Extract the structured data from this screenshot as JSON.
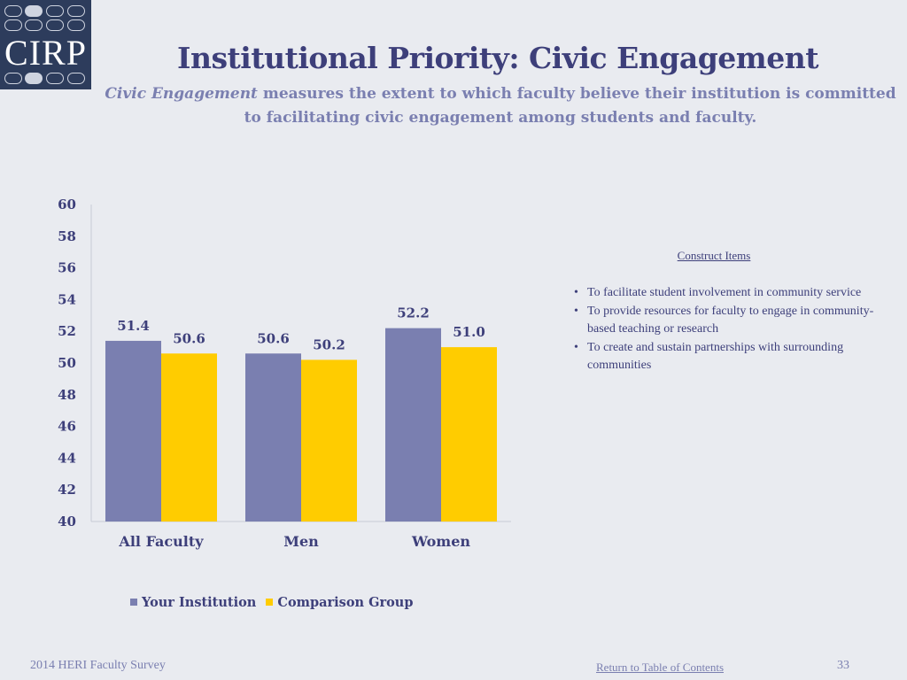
{
  "logo": {
    "text": "CIRP"
  },
  "header": {
    "title": "Institutional Priority: Civic Engagement",
    "subtitle_lead": "Civic Engagement",
    "subtitle_rest": " measures the extent to which faculty believe their institution is committed to facilitating civic engagement among students and faculty."
  },
  "chart_data": {
    "type": "bar",
    "title": "",
    "xlabel": "",
    "ylabel": "",
    "categories": [
      "All Faculty",
      "Men",
      "Women"
    ],
    "series": [
      {
        "name": "Your Institution",
        "values": [
          51.4,
          50.6,
          52.2
        ],
        "labels": [
          "51.4",
          "50.6",
          "52.2"
        ],
        "color": "#7a7fb0"
      },
      {
        "name": "Comparison Group",
        "values": [
          50.6,
          50.2,
          51.0
        ],
        "labels": [
          "50.6",
          "50.2",
          "51.0"
        ],
        "color": "#ffcc00"
      }
    ],
    "ylim": [
      40,
      60
    ],
    "yticks": [
      40,
      42,
      44,
      46,
      48,
      50,
      52,
      54,
      56,
      58,
      60
    ],
    "grid": false,
    "legend_position": "bottom"
  },
  "construct": {
    "title": "Construct Items",
    "items": [
      "To facilitate student involvement in community service",
      "To provide resources for faculty to engage in community-based teaching or research",
      "To create and sustain partnerships with surrounding communities"
    ]
  },
  "legend": {
    "items": [
      {
        "label": "Your Institution",
        "color": "#7a7fb0"
      },
      {
        "label": "Comparison Group",
        "color": "#ffcc00"
      }
    ]
  },
  "footer": {
    "survey": "2014 HERI Faculty Survey",
    "link": "Return to Table of Contents",
    "page": "33"
  }
}
